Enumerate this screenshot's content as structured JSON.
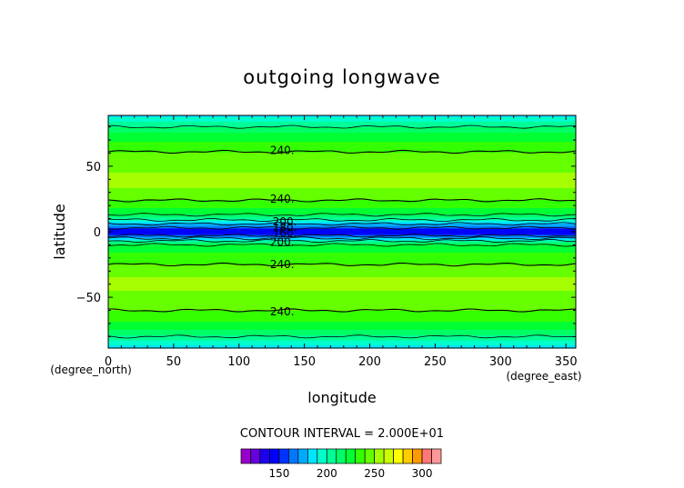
{
  "chart_data": {
    "type": "heatmap",
    "title": "outgoing longwave",
    "xlabel": "longitude",
    "ylabel": "latitude",
    "x_unit": "(degree_east)",
    "y_unit": "(degree_north)",
    "xlim": [
      0,
      357.5
    ],
    "ylim": [
      -88.75,
      88.75
    ],
    "x_ticks": [
      0,
      50,
      100,
      150,
      200,
      250,
      300,
      350
    ],
    "x_tick_labels": [
      "0",
      "50",
      "100",
      "150",
      "200",
      "250",
      "300",
      "350"
    ],
    "y_ticks": [
      -50,
      0,
      50
    ],
    "y_tick_labels": [
      "−50",
      "0",
      "50"
    ],
    "contour_interval_text": "CONTOUR INTERVAL = 2.000E+01",
    "contour_labels": [
      {
        "text": "240.",
        "lon": 133,
        "lat": 62
      },
      {
        "text": "240.",
        "lon": 133,
        "lat": 25
      },
      {
        "text": "200.",
        "lon": 135,
        "lat": 7.5
      },
      {
        "text": "180.",
        "lon": 135,
        "lat": 3
      },
      {
        "text": "160.",
        "lon": 135,
        "lat": -1
      },
      {
        "text": "200.",
        "lon": 133,
        "lat": -8
      },
      {
        "text": "240.",
        "lon": 133,
        "lat": -25
      },
      {
        "text": "240.",
        "lon": 133,
        "lat": -61
      }
    ],
    "contour_lines": [
      {
        "value": 240,
        "lat": 61
      },
      {
        "value": 220,
        "lat": 80
      },
      {
        "value": 240,
        "lat": 24
      },
      {
        "value": 220,
        "lat": 13
      },
      {
        "value": 200,
        "lat": 9
      },
      {
        "value": 180,
        "lat": 6
      },
      {
        "value": 160,
        "lat": 3
      },
      {
        "value": 160,
        "lat": -3
      },
      {
        "value": 180,
        "lat": -5
      },
      {
        "value": 200,
        "lat": -7
      },
      {
        "value": 220,
        "lat": -10
      },
      {
        "value": 240,
        "lat": -25
      },
      {
        "value": 240,
        "lat": -60
      },
      {
        "value": 220,
        "lat": -80
      }
    ],
    "zonal_mean_profile": [
      {
        "lat": 88.75,
        "value": 185
      },
      {
        "lat": 85,
        "value": 196
      },
      {
        "lat": 80,
        "value": 210
      },
      {
        "lat": 75,
        "value": 222
      },
      {
        "lat": 70,
        "value": 228
      },
      {
        "lat": 65,
        "value": 235
      },
      {
        "lat": 60,
        "value": 240
      },
      {
        "lat": 50,
        "value": 248
      },
      {
        "lat": 40,
        "value": 252
      },
      {
        "lat": 30,
        "value": 249
      },
      {
        "lat": 24,
        "value": 240
      },
      {
        "lat": 18,
        "value": 230
      },
      {
        "lat": 13,
        "value": 220
      },
      {
        "lat": 9,
        "value": 200
      },
      {
        "lat": 6,
        "value": 180
      },
      {
        "lat": 3,
        "value": 160
      },
      {
        "lat": 1.5,
        "value": 148
      },
      {
        "lat": 0,
        "value": 145
      },
      {
        "lat": -1.5,
        "value": 148
      },
      {
        "lat": -3,
        "value": 160
      },
      {
        "lat": -5,
        "value": 180
      },
      {
        "lat": -7,
        "value": 200
      },
      {
        "lat": -10,
        "value": 220
      },
      {
        "lat": -16,
        "value": 230
      },
      {
        "lat": -25,
        "value": 240
      },
      {
        "lat": -32,
        "value": 249
      },
      {
        "lat": -40,
        "value": 252
      },
      {
        "lat": -50,
        "value": 248
      },
      {
        "lat": -60,
        "value": 240
      },
      {
        "lat": -65,
        "value": 235
      },
      {
        "lat": -70,
        "value": 228
      },
      {
        "lat": -75,
        "value": 220
      },
      {
        "lat": -80,
        "value": 208
      },
      {
        "lat": -85,
        "value": 195
      },
      {
        "lat": -88.75,
        "value": 185
      }
    ],
    "colorbar": {
      "min": 110,
      "max": 320,
      "step": 10,
      "ticks": [
        150,
        200,
        250,
        300
      ],
      "tick_labels": [
        "150",
        "200",
        "250",
        "300"
      ],
      "colors": [
        "#9900cc",
        "#6600dd",
        "#1d00f0",
        "#0000ff",
        "#0033ff",
        "#0077ff",
        "#00aaff",
        "#00e5ff",
        "#00ffcc",
        "#00ff99",
        "#00ff66",
        "#00ff33",
        "#33ff00",
        "#66ff00",
        "#a6ff00",
        "#ccff00",
        "#ffff00",
        "#ffcc00",
        "#ff9900",
        "#ff7777",
        "#ff9999"
      ]
    }
  }
}
